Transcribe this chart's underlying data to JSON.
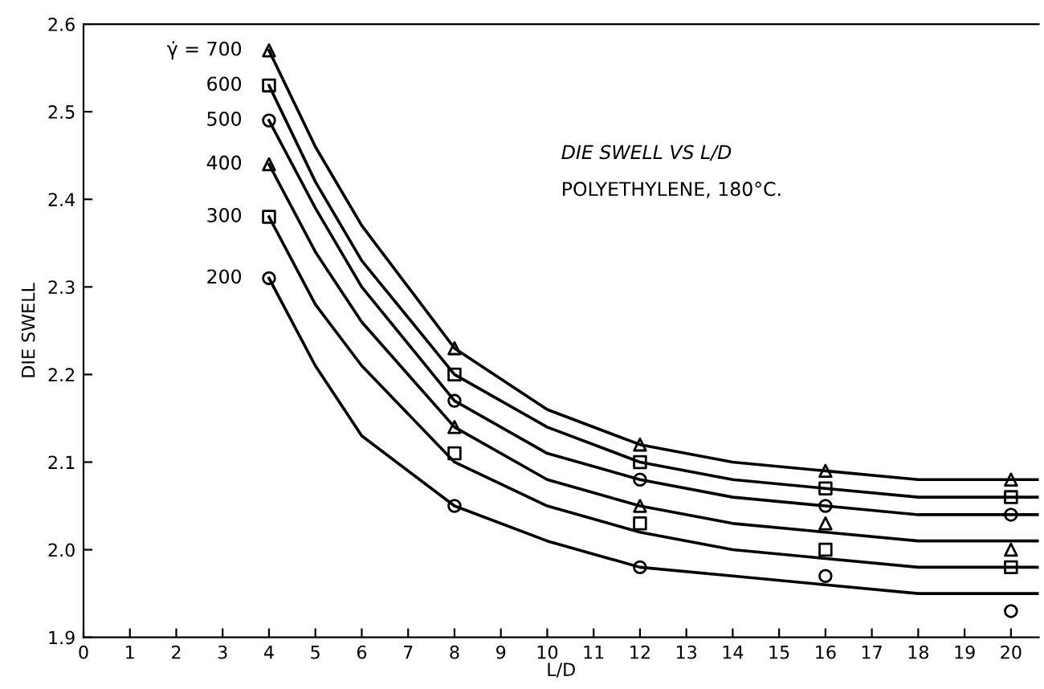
{
  "chart_data": {
    "type": "line",
    "title": "DIE SWELL VS L/D",
    "subtitle": "POLYETHYLENE, 180°C.",
    "xlabel": "L/D",
    "ylabel": "DIE SWELL",
    "xlim": [
      0,
      20.6
    ],
    "xticks": [
      0,
      1,
      2,
      3,
      4,
      5,
      6,
      7,
      8,
      9,
      10,
      11,
      12,
      13,
      14,
      15,
      16,
      17,
      18,
      19,
      20
    ],
    "ylim": [
      1.9,
      2.6
    ],
    "yticks": [
      1.9,
      {
        "value": 2.0,
        "label": "2.0"
      },
      2.1,
      2.2,
      2.3,
      2.4,
      2.5,
      2.6
    ],
    "grid": false,
    "series": [
      {
        "type": "scatter",
        "name": "γ̇ = 700",
        "marker": "triangle",
        "color": "#000000",
        "x": [
          4,
          8,
          12,
          16,
          20
        ],
        "values": [
          2.57,
          2.23,
          2.12,
          2.09,
          2.08
        ]
      },
      {
        "type": "scatter",
        "name": "600",
        "marker": "square",
        "color": "#000000",
        "x": [
          4,
          8,
          12,
          16,
          20
        ],
        "values": [
          2.53,
          2.2,
          2.1,
          2.07,
          2.06
        ]
      },
      {
        "type": "scatter",
        "name": "500",
        "marker": "circle",
        "color": "#000000",
        "x": [
          4,
          8,
          12,
          16,
          20
        ],
        "values": [
          2.49,
          2.17,
          2.08,
          2.05,
          2.04
        ]
      },
      {
        "type": "scatter",
        "name": "400",
        "marker": "triangle",
        "color": "#000000",
        "x": [
          4,
          8,
          12,
          16,
          20
        ],
        "values": [
          2.44,
          2.14,
          2.05,
          2.03,
          2.0
        ]
      },
      {
        "type": "scatter",
        "name": "300",
        "marker": "square",
        "color": "#000000",
        "x": [
          4,
          8,
          12,
          16,
          20
        ],
        "values": [
          2.38,
          2.11,
          2.03,
          2.0,
          1.98
        ]
      },
      {
        "type": "scatter",
        "name": "200",
        "marker": "circle",
        "color": "#000000",
        "x": [
          4,
          8,
          12,
          16,
          20
        ],
        "values": [
          2.31,
          2.05,
          1.98,
          1.97,
          1.93
        ]
      },
      {
        "color": "#000000",
        "x": [
          4,
          5,
          6,
          8,
          10,
          12,
          14,
          16,
          18,
          20.6
        ],
        "values": [
          2.57,
          2.46,
          2.37,
          2.23,
          2.16,
          2.12,
          2.1,
          2.09,
          2.08,
          2.08
        ]
      },
      {
        "color": "#000000",
        "x": [
          4,
          5,
          6,
          8,
          10,
          12,
          14,
          16,
          18,
          20.6
        ],
        "values": [
          2.53,
          2.42,
          2.33,
          2.2,
          2.14,
          2.1,
          2.08,
          2.07,
          2.06,
          2.06
        ]
      },
      {
        "color": "#000000",
        "x": [
          4,
          5,
          6,
          8,
          10,
          12,
          14,
          16,
          18,
          20.6
        ],
        "values": [
          2.49,
          2.39,
          2.3,
          2.17,
          2.11,
          2.08,
          2.06,
          2.05,
          2.04,
          2.04
        ]
      },
      {
        "color": "#000000",
        "x": [
          4,
          5,
          6,
          8,
          10,
          12,
          14,
          16,
          18,
          20.6
        ],
        "values": [
          2.44,
          2.34,
          2.26,
          2.14,
          2.08,
          2.05,
          2.03,
          2.02,
          2.01,
          2.01
        ]
      },
      {
        "color": "#000000",
        "x": [
          4,
          5,
          6,
          8,
          10,
          12,
          14,
          16,
          18,
          20.6
        ],
        "values": [
          2.38,
          2.28,
          2.21,
          2.1,
          2.05,
          2.02,
          2.0,
          1.99,
          1.98,
          1.98
        ]
      },
      {
        "color": "#000000",
        "x": [
          4,
          5,
          6,
          8,
          10,
          12,
          14,
          16,
          18,
          20.6
        ],
        "values": [
          2.31,
          2.21,
          2.13,
          2.05,
          2.01,
          1.98,
          1.97,
          1.96,
          1.95,
          1.95
        ]
      }
    ]
  }
}
